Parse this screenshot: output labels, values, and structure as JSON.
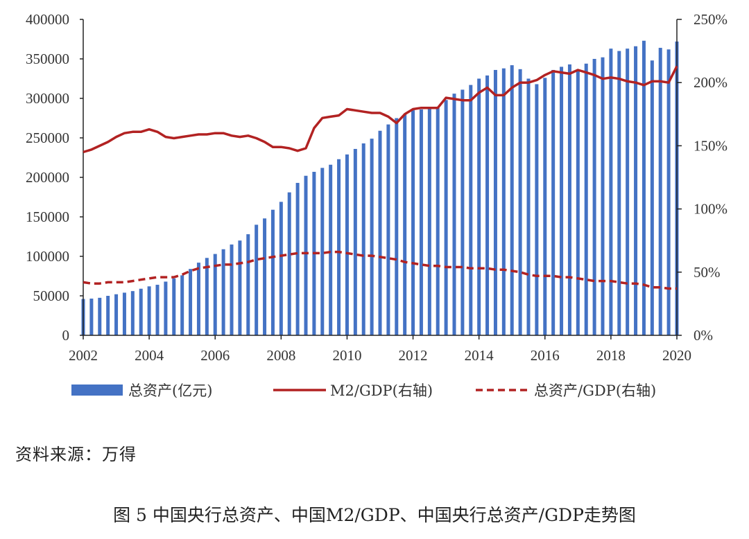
{
  "chart_data": {
    "type": "bar+line",
    "title": "图 5  中国央行总资产、中国M2/GDP、中国央行总资产/GDP走势图",
    "left_axis": {
      "ylim": [
        0,
        400000
      ],
      "ticks": [
        "0",
        "50000",
        "100000",
        "150000",
        "200000",
        "250000",
        "300000",
        "350000",
        "400000"
      ]
    },
    "right_axis": {
      "ylim": [
        0,
        2.5
      ],
      "ticks": [
        "0%",
        "50%",
        "100%",
        "150%",
        "200%",
        "250%"
      ]
    },
    "x_axis": {
      "range": [
        2002,
        2020
      ],
      "ticks": [
        "2002",
        "2004",
        "2006",
        "2008",
        "2010",
        "2012",
        "2014",
        "2016",
        "2018",
        "2020"
      ]
    },
    "legend": {
      "bar": "总资产(亿元)",
      "line": "M2/GDP(右轴)",
      "dashed": "总资产/GDP(右轴)"
    },
    "colors": {
      "bar": "#4472c4",
      "line": "#b22222",
      "axis": "#222222"
    },
    "series": [
      {
        "name": "总资产(亿元)",
        "axis": "left",
        "type": "bar",
        "x": [
          2002,
          2002.25,
          2002.5,
          2002.75,
          2003,
          2003.25,
          2003.5,
          2003.75,
          2004,
          2004.25,
          2004.5,
          2004.75,
          2005,
          2005.25,
          2005.5,
          2005.75,
          2006,
          2006.25,
          2006.5,
          2006.75,
          2007,
          2007.25,
          2007.5,
          2007.75,
          2008,
          2008.25,
          2008.5,
          2008.75,
          2009,
          2009.25,
          2009.5,
          2009.75,
          2010,
          2010.25,
          2010.5,
          2010.75,
          2011,
          2011.25,
          2011.5,
          2011.75,
          2012,
          2012.25,
          2012.5,
          2012.75,
          2013,
          2013.25,
          2013.5,
          2013.75,
          2014,
          2014.25,
          2014.5,
          2014.75,
          2015,
          2015.25,
          2015.5,
          2015.75,
          2016,
          2016.25,
          2016.5,
          2016.75,
          2017,
          2017.25,
          2017.5,
          2017.75,
          2018,
          2018.25,
          2018.5,
          2018.75,
          2019,
          2019.25,
          2019.5,
          2019.75,
          2020
        ],
        "values": [
          46000,
          46500,
          47500,
          50000,
          52000,
          54000,
          56000,
          59000,
          62000,
          64000,
          68000,
          72000,
          76000,
          84000,
          92000,
          98000,
          103000,
          109000,
          115000,
          120000,
          128000,
          140000,
          148000,
          159000,
          169000,
          181000,
          193000,
          202000,
          207000,
          212000,
          216000,
          223000,
          229000,
          236000,
          243000,
          249000,
          259000,
          267000,
          275000,
          280000,
          285000,
          286000,
          287000,
          288000,
          298000,
          306000,
          311000,
          317000,
          325000,
          329000,
          336000,
          338000,
          342000,
          337000,
          325000,
          318000,
          326000,
          336000,
          340000,
          343000,
          336000,
          344000,
          350000,
          352000,
          363000,
          360000,
          363000,
          366000,
          373000,
          348000,
          364000,
          362000,
          372000
        ]
      },
      {
        "name": "M2/GDP(右轴)",
        "axis": "right",
        "type": "line",
        "x": [
          2002,
          2002.25,
          2002.5,
          2002.75,
          2003,
          2003.25,
          2003.5,
          2003.75,
          2004,
          2004.25,
          2004.5,
          2004.75,
          2005,
          2005.25,
          2005.5,
          2005.75,
          2006,
          2006.25,
          2006.5,
          2006.75,
          2007,
          2007.25,
          2007.5,
          2007.75,
          2008,
          2008.25,
          2008.5,
          2008.75,
          2009,
          2009.25,
          2009.5,
          2009.75,
          2010,
          2010.25,
          2010.5,
          2010.75,
          2011,
          2011.25,
          2011.5,
          2011.75,
          2012,
          2012.25,
          2012.5,
          2012.75,
          2013,
          2013.25,
          2013.5,
          2013.75,
          2014,
          2014.25,
          2014.5,
          2014.75,
          2015,
          2015.25,
          2015.5,
          2015.75,
          2016,
          2016.25,
          2016.5,
          2016.75,
          2017,
          2017.25,
          2017.5,
          2017.75,
          2018,
          2018.25,
          2018.5,
          2018.75,
          2019,
          2019.25,
          2019.5,
          2019.75,
          2020
        ],
        "values": [
          1.45,
          1.47,
          1.5,
          1.53,
          1.57,
          1.6,
          1.61,
          1.61,
          1.63,
          1.61,
          1.57,
          1.56,
          1.57,
          1.58,
          1.59,
          1.59,
          1.6,
          1.6,
          1.58,
          1.57,
          1.58,
          1.56,
          1.53,
          1.49,
          1.49,
          1.48,
          1.46,
          1.48,
          1.64,
          1.72,
          1.73,
          1.74,
          1.79,
          1.78,
          1.77,
          1.76,
          1.76,
          1.73,
          1.68,
          1.75,
          1.79,
          1.8,
          1.8,
          1.8,
          1.88,
          1.87,
          1.86,
          1.86,
          1.92,
          1.96,
          1.9,
          1.9,
          1.96,
          2.0,
          2.0,
          2.02,
          2.06,
          2.09,
          2.08,
          2.07,
          2.1,
          2.08,
          2.06,
          2.03,
          2.04,
          2.03,
          2.01,
          2.0,
          1.98,
          2.01,
          2.01,
          2.0,
          2.13
        ]
      },
      {
        "name": "总资产/GDP(右轴)",
        "axis": "right",
        "type": "dashed-line",
        "x": [
          2002,
          2002.25,
          2002.5,
          2002.75,
          2003,
          2003.25,
          2003.5,
          2003.75,
          2004,
          2004.25,
          2004.5,
          2004.75,
          2005,
          2005.25,
          2005.5,
          2005.75,
          2006,
          2006.25,
          2006.5,
          2006.75,
          2007,
          2007.25,
          2007.5,
          2007.75,
          2008,
          2008.25,
          2008.5,
          2008.75,
          2009,
          2009.25,
          2009.5,
          2009.75,
          2010,
          2010.25,
          2010.5,
          2010.75,
          2011,
          2011.25,
          2011.5,
          2011.75,
          2012,
          2012.25,
          2012.5,
          2012.75,
          2013,
          2013.25,
          2013.5,
          2013.75,
          2014,
          2014.25,
          2014.5,
          2014.75,
          2015,
          2015.25,
          2015.5,
          2015.75,
          2016,
          2016.25,
          2016.5,
          2016.75,
          2017,
          2017.25,
          2017.5,
          2017.75,
          2018,
          2018.25,
          2018.5,
          2018.75,
          2019,
          2019.25,
          2019.5,
          2019.75,
          2020
        ],
        "values": [
          0.42,
          0.41,
          0.41,
          0.42,
          0.42,
          0.42,
          0.43,
          0.44,
          0.45,
          0.46,
          0.46,
          0.46,
          0.48,
          0.51,
          0.53,
          0.54,
          0.55,
          0.56,
          0.56,
          0.57,
          0.58,
          0.6,
          0.61,
          0.62,
          0.63,
          0.64,
          0.65,
          0.65,
          0.65,
          0.65,
          0.66,
          0.66,
          0.65,
          0.64,
          0.63,
          0.63,
          0.62,
          0.61,
          0.6,
          0.58,
          0.57,
          0.56,
          0.55,
          0.55,
          0.54,
          0.54,
          0.54,
          0.53,
          0.53,
          0.53,
          0.52,
          0.52,
          0.51,
          0.5,
          0.48,
          0.47,
          0.47,
          0.47,
          0.46,
          0.46,
          0.45,
          0.44,
          0.43,
          0.43,
          0.43,
          0.42,
          0.41,
          0.41,
          0.4,
          0.38,
          0.38,
          0.37,
          0.37
        ]
      }
    ]
  },
  "source_note": "资料来源：万得",
  "caption": "图 5  中国央行总资产、中国M2/GDP、中国央行总资产/GDP走势图"
}
